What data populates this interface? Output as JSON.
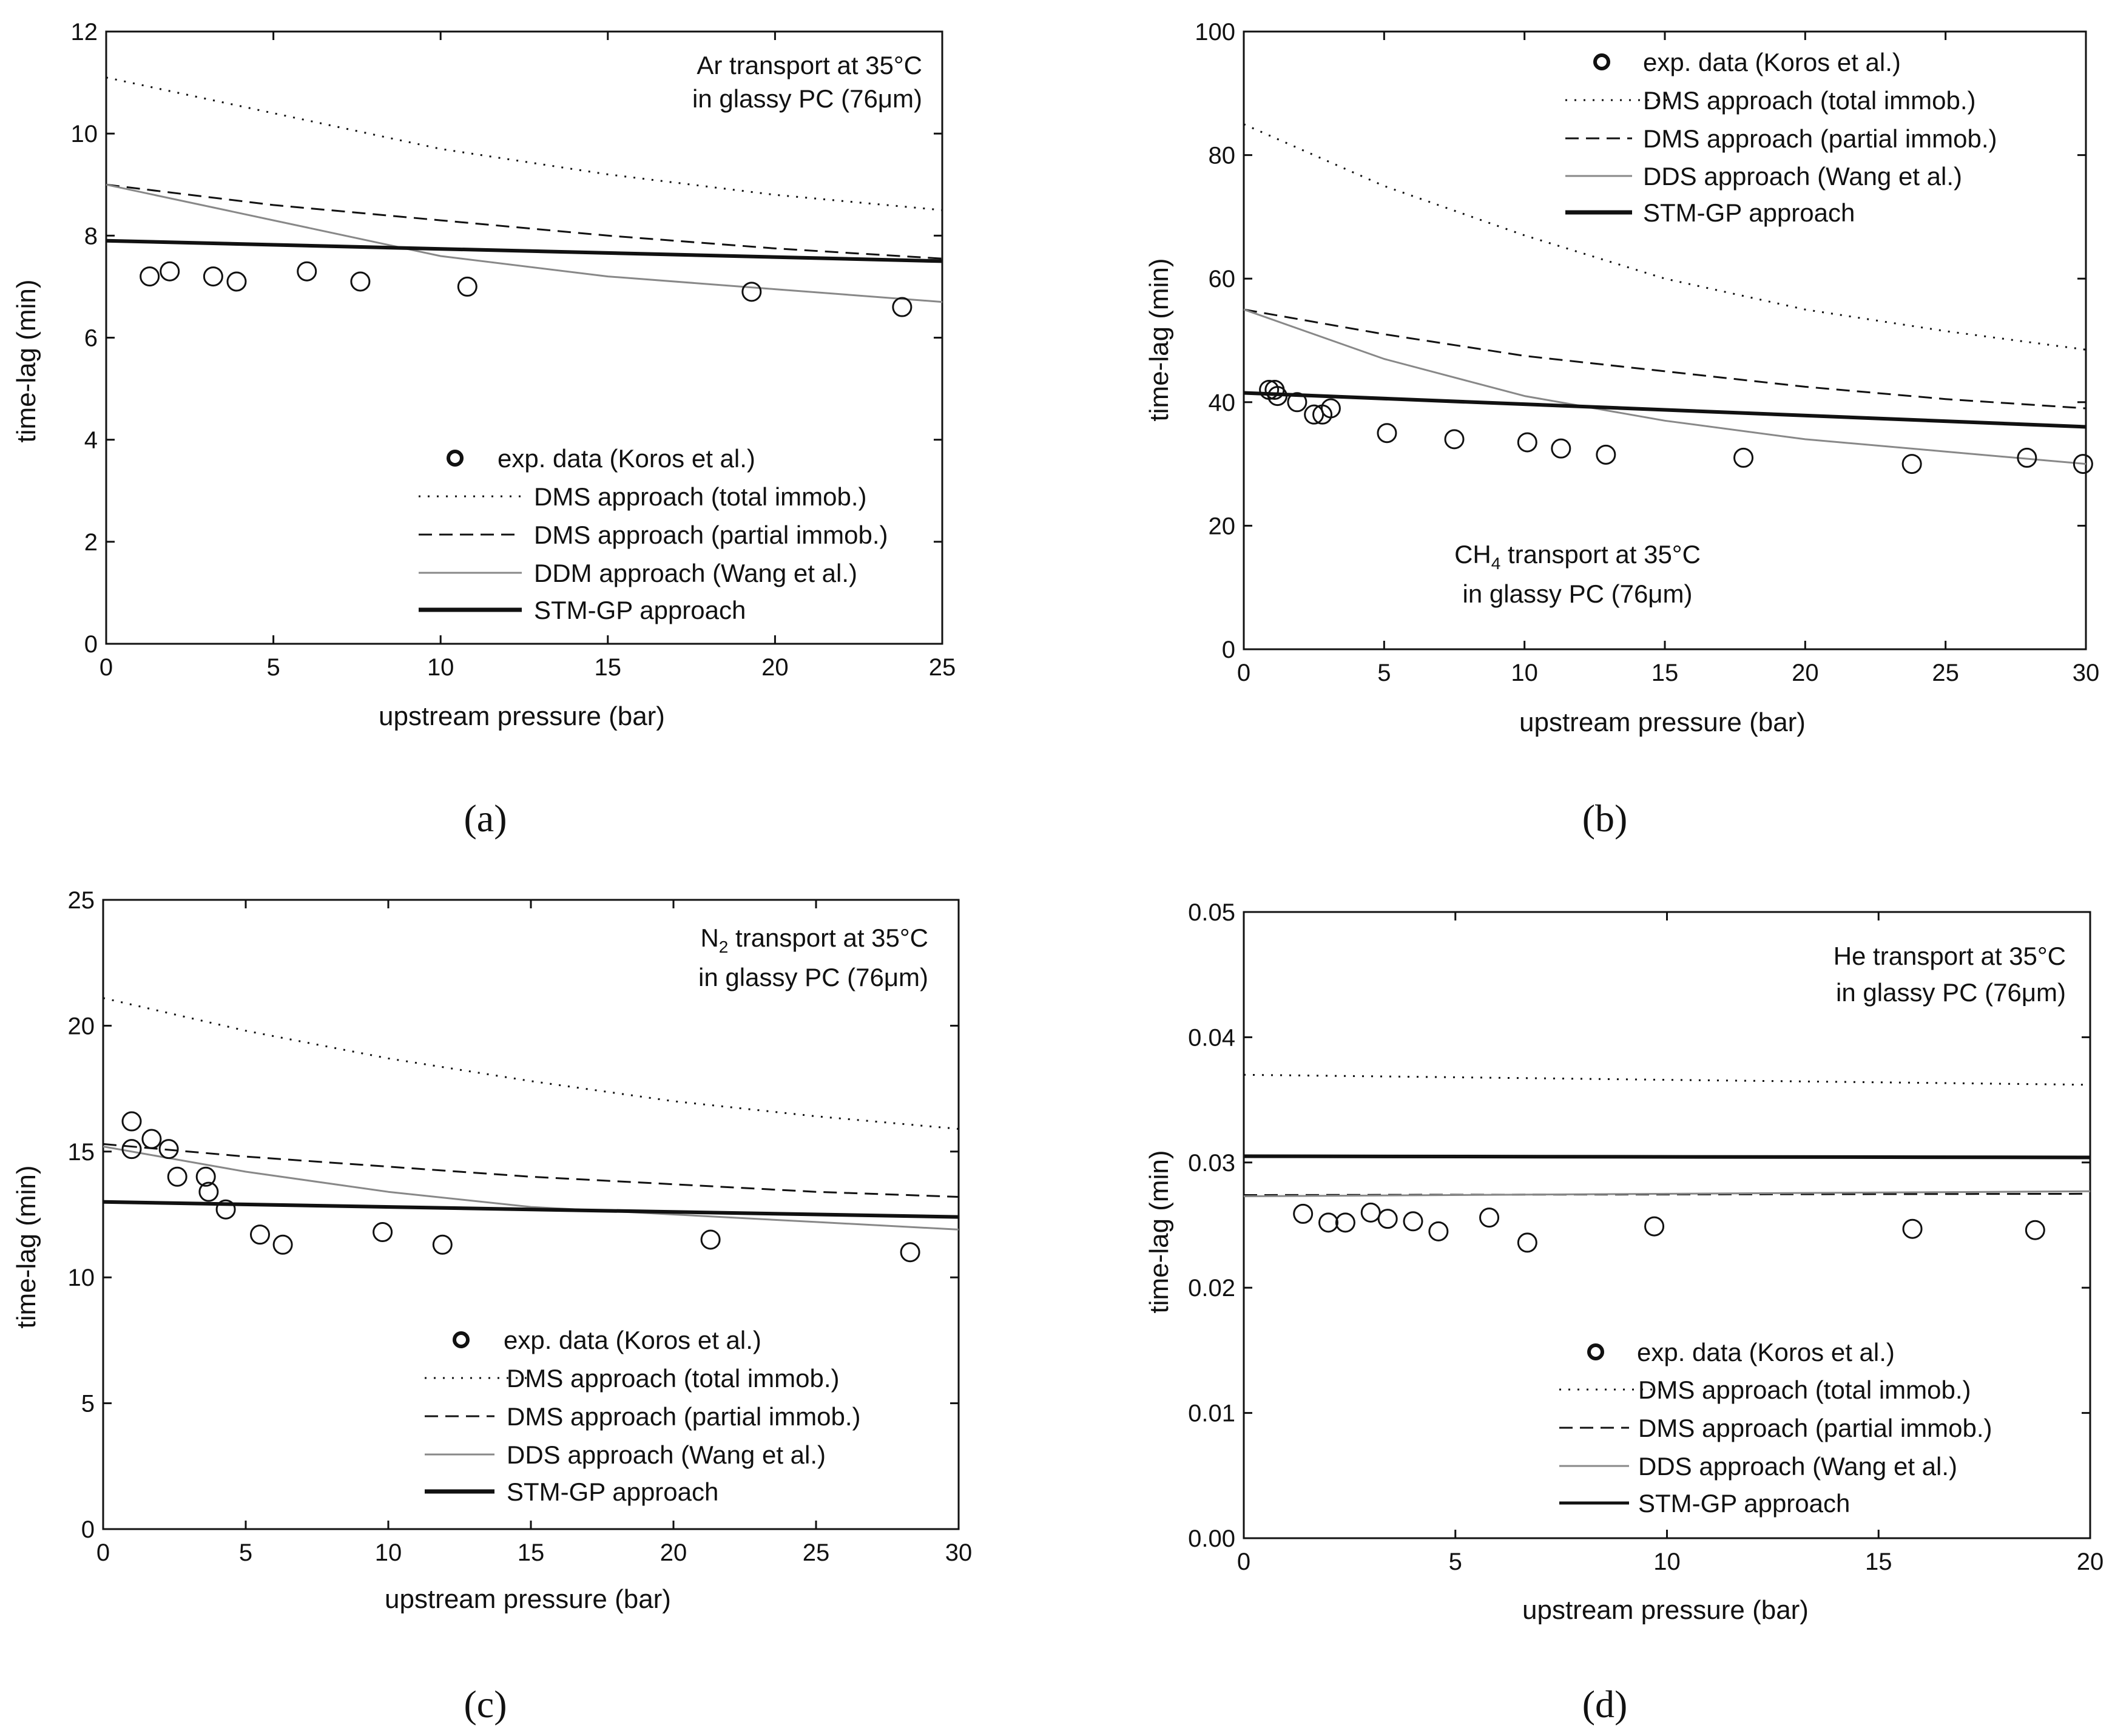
{
  "chart_data": [
    {
      "type": "line",
      "panel_label": "(a)",
      "title_lines": [
        "Ar transport at 35°C",
        "in glassy PC (76μm)"
      ],
      "xlabel": "upstream pressure (bar)",
      "ylabel": "time-lag (min)",
      "xlim": [
        0,
        25
      ],
      "ylim": [
        0,
        12
      ],
      "xticks": [
        0,
        5,
        10,
        15,
        20,
        25
      ],
      "yticks": [
        0,
        2,
        4,
        6,
        8,
        10,
        12
      ],
      "legend": [
        "exp. data (Koros et al.)",
        "DMS approach (total immob.)",
        "DMS approach (partial immob.)",
        "DDM approach (Wang et al.)",
        "STM-GP approach"
      ],
      "exp_data": [
        [
          1.3,
          7.2
        ],
        [
          1.9,
          7.3
        ],
        [
          3.2,
          7.2
        ],
        [
          3.9,
          7.1
        ],
        [
          6.0,
          7.3
        ],
        [
          7.6,
          7.1
        ],
        [
          10.8,
          7.0
        ],
        [
          19.3,
          6.9
        ],
        [
          23.8,
          6.6
        ]
      ],
      "curves": {
        "dms_total": [
          [
            0,
            11.1
          ],
          [
            5,
            10.4
          ],
          [
            10,
            9.7
          ],
          [
            15,
            9.2
          ],
          [
            20,
            8.8
          ],
          [
            25,
            8.5
          ]
        ],
        "dms_partial": [
          [
            0,
            9.0
          ],
          [
            5,
            8.6
          ],
          [
            10,
            8.3
          ],
          [
            15,
            8.0
          ],
          [
            20,
            7.75
          ],
          [
            25,
            7.55
          ]
        ],
        "ddm": [
          [
            0,
            9.0
          ],
          [
            5,
            8.3
          ],
          [
            10,
            7.6
          ],
          [
            15,
            7.2
          ],
          [
            20,
            6.95
          ],
          [
            25,
            6.7
          ]
        ],
        "stm": [
          [
            0,
            7.9
          ],
          [
            25,
            7.5
          ]
        ]
      }
    },
    {
      "type": "line",
      "panel_label": "(b)",
      "title_lines": [
        "CH4 transport at 35°C",
        "in glassy PC (76μm)"
      ],
      "xlabel": "upstream pressure (bar)",
      "ylabel": "time-lag (min)",
      "xlim": [
        0,
        30
      ],
      "ylim": [
        0,
        100
      ],
      "xticks": [
        0,
        5,
        10,
        15,
        20,
        25,
        30
      ],
      "yticks": [
        0,
        20,
        40,
        60,
        80,
        100
      ],
      "legend": [
        "exp. data (Koros et al.)",
        "DMS approach (total immob.)",
        "DMS approach (partial immob.)",
        "DDS approach (Wang et al.)",
        "STM-GP approach"
      ],
      "exp_data": [
        [
          0.9,
          42
        ],
        [
          1.1,
          42
        ],
        [
          1.2,
          41
        ],
        [
          1.9,
          40
        ],
        [
          2.5,
          38
        ],
        [
          2.8,
          38
        ],
        [
          3.1,
          39
        ],
        [
          5.1,
          35
        ],
        [
          7.5,
          34
        ],
        [
          10.1,
          33.5
        ],
        [
          11.3,
          32.5
        ],
        [
          12.9,
          31.5
        ],
        [
          17.8,
          31
        ],
        [
          23.8,
          30
        ],
        [
          27.9,
          31
        ],
        [
          29.9,
          30
        ]
      ],
      "curves": {
        "dms_total": [
          [
            0,
            85
          ],
          [
            5,
            75
          ],
          [
            10,
            67
          ],
          [
            15,
            60
          ],
          [
            20,
            55
          ],
          [
            25,
            51.5
          ],
          [
            30,
            48.5
          ]
        ],
        "dms_partial": [
          [
            0,
            55
          ],
          [
            5,
            51
          ],
          [
            10,
            47.5
          ],
          [
            15,
            45
          ],
          [
            20,
            42.5
          ],
          [
            25,
            40.5
          ],
          [
            30,
            39
          ]
        ],
        "ddm": [
          [
            0,
            55
          ],
          [
            5,
            47
          ],
          [
            10,
            41
          ],
          [
            15,
            37
          ],
          [
            20,
            34
          ],
          [
            25,
            32
          ],
          [
            30,
            30
          ]
        ],
        "stm": [
          [
            0,
            41.5
          ],
          [
            30,
            36
          ]
        ]
      }
    },
    {
      "type": "line",
      "panel_label": "(c)",
      "title_lines": [
        "N2 transport at 35°C",
        "in glassy PC (76μm)"
      ],
      "xlabel": "upstream pressure (bar)",
      "ylabel": "time-lag (min)",
      "xlim": [
        0,
        30
      ],
      "ylim": [
        0,
        25
      ],
      "xticks": [
        0,
        5,
        10,
        15,
        20,
        25,
        30
      ],
      "yticks": [
        0,
        5,
        10,
        15,
        20,
        25
      ],
      "legend": [
        "exp. data (Koros et al.)",
        "DMS approach (total immob.)",
        "DMS approach (partial immob.)",
        "DDS approach (Wang et al.)",
        "STM-GP approach"
      ],
      "exp_data": [
        [
          1.0,
          16.2
        ],
        [
          1.0,
          15.1
        ],
        [
          1.7,
          15.5
        ],
        [
          2.3,
          15.1
        ],
        [
          2.6,
          14.0
        ],
        [
          3.6,
          14.0
        ],
        [
          3.7,
          13.4
        ],
        [
          4.3,
          12.7
        ],
        [
          5.5,
          11.7
        ],
        [
          6.3,
          11.3
        ],
        [
          9.8,
          11.8
        ],
        [
          11.9,
          11.3
        ],
        [
          21.3,
          11.5
        ],
        [
          28.3,
          11.0
        ]
      ],
      "curves": {
        "dms_total": [
          [
            0,
            21.1
          ],
          [
            5,
            19.8
          ],
          [
            10,
            18.7
          ],
          [
            15,
            17.8
          ],
          [
            20,
            17.0
          ],
          [
            25,
            16.4
          ],
          [
            30,
            15.9
          ]
        ],
        "dms_partial": [
          [
            0,
            15.3
          ],
          [
            5,
            14.8
          ],
          [
            10,
            14.4
          ],
          [
            15,
            14.0
          ],
          [
            20,
            13.7
          ],
          [
            25,
            13.4
          ],
          [
            30,
            13.2
          ]
        ],
        "ddm": [
          [
            0,
            15.2
          ],
          [
            5,
            14.2
          ],
          [
            10,
            13.4
          ],
          [
            15,
            12.8
          ],
          [
            20,
            12.5
          ],
          [
            25,
            12.2
          ],
          [
            30,
            11.9
          ]
        ],
        "stm": [
          [
            0,
            13.0
          ],
          [
            30,
            12.4
          ]
        ]
      }
    },
    {
      "type": "line",
      "panel_label": "(d)",
      "title_lines": [
        "He transport at 35°C",
        "in glassy PC (76μm)"
      ],
      "xlabel": "upstream pressure (bar)",
      "ylabel": "time-lag (min)",
      "xlim": [
        0,
        20
      ],
      "ylim": [
        0,
        0.05
      ],
      "xticks": [
        0,
        5,
        10,
        15,
        20
      ],
      "yticks": [
        0.0,
        0.01,
        0.02,
        0.03,
        0.04,
        0.05
      ],
      "ytick_labels": [
        "0.00",
        "0.01",
        "0.02",
        "0.03",
        "0.04",
        "0.05"
      ],
      "legend": [
        "exp. data (Koros et al.)",
        "DMS approach (total immob.)",
        "DMS approach (partial immob.)",
        "DDS approach (Wang et al.)",
        "STM-GP approach"
      ],
      "exp_data": [
        [
          1.4,
          0.0259
        ],
        [
          2.0,
          0.0252
        ],
        [
          2.4,
          0.0252
        ],
        [
          3.0,
          0.026
        ],
        [
          3.4,
          0.0255
        ],
        [
          4.0,
          0.0253
        ],
        [
          4.6,
          0.0245
        ],
        [
          5.8,
          0.0256
        ],
        [
          6.7,
          0.0236
        ],
        [
          9.7,
          0.0249
        ],
        [
          15.8,
          0.0247
        ],
        [
          18.7,
          0.0246
        ]
      ],
      "curves": {
        "dms_total": [
          [
            0,
            0.037
          ],
          [
            5,
            0.0368
          ],
          [
            10,
            0.0366
          ],
          [
            15,
            0.0364
          ],
          [
            20,
            0.0362
          ]
        ],
        "dms_partial": [
          [
            0,
            0.0274
          ],
          [
            20,
            0.0275
          ]
        ],
        "ddm": [
          [
            0,
            0.0273
          ],
          [
            20,
            0.0277
          ]
        ],
        "stm": [
          [
            0,
            0.0305
          ],
          [
            20,
            0.0304
          ]
        ]
      }
    }
  ]
}
